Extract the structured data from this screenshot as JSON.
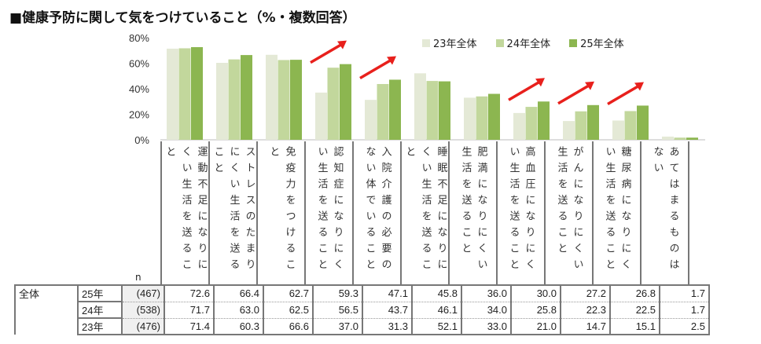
{
  "title": "■健康予防に関して気をつけていること（%・複数回答）",
  "chart_data": {
    "type": "bar",
    "title": "■健康予防に関して気をつけていること（%・複数回答）",
    "ylim": [
      0,
      80
    ],
    "yticks": [
      "0%",
      "20%",
      "40%",
      "60%",
      "80%"
    ],
    "legend_position": "top-right",
    "categories": [
      "運動不足になりにくい生活を送ること",
      "ストレスのたまりにくい生活を送ること",
      "免疫力をつけること",
      "認知症になりにくい生活を送ること",
      "入院介護の必要のない体でいること",
      "睡眠不足になりにくい生活を送ること",
      "肥満になりにくい生活を送ること",
      "高血圧になりにくい生活を送ること",
      "がんになりにくい生活を送ること",
      "糖尿病になりにくい生活を送ること",
      "あてはまるものはない"
    ],
    "series": [
      {
        "name": "23年全体",
        "color": "#e4e9d6",
        "values": [
          71.4,
          60.3,
          66.6,
          37.0,
          31.3,
          52.1,
          33.0,
          21.0,
          14.7,
          15.1,
          2.5
        ]
      },
      {
        "name": "24年全体",
        "color": "#c2d79c",
        "values": [
          71.7,
          63.0,
          62.5,
          56.5,
          43.7,
          46.1,
          34.0,
          25.8,
          22.3,
          22.5,
          1.7
        ]
      },
      {
        "name": "25年全体",
        "color": "#8cb650",
        "values": [
          72.6,
          66.4,
          62.7,
          59.3,
          47.1,
          45.8,
          36.0,
          30.0,
          27.2,
          26.8,
          1.7
        ]
      }
    ],
    "highlight_arrows": [
      3,
      4,
      7,
      8,
      9
    ],
    "arrow_color": "#e8201c"
  },
  "table": {
    "n_header": "n",
    "group": "全体",
    "rows": [
      {
        "year": "25年",
        "n": "(467)",
        "values": [
          "72.6",
          "66.4",
          "62.7",
          "59.3",
          "47.1",
          "45.8",
          "36.0",
          "30.0",
          "27.2",
          "26.8",
          "1.7"
        ]
      },
      {
        "year": "24年",
        "n": "(538)",
        "values": [
          "71.7",
          "63.0",
          "62.5",
          "56.5",
          "43.7",
          "46.1",
          "34.0",
          "25.8",
          "22.3",
          "22.5",
          "1.7"
        ]
      },
      {
        "year": "23年",
        "n": "(476)",
        "values": [
          "71.4",
          "60.3",
          "66.6",
          "37.0",
          "31.3",
          "52.1",
          "33.0",
          "21.0",
          "14.7",
          "15.1",
          "2.5"
        ]
      }
    ]
  }
}
